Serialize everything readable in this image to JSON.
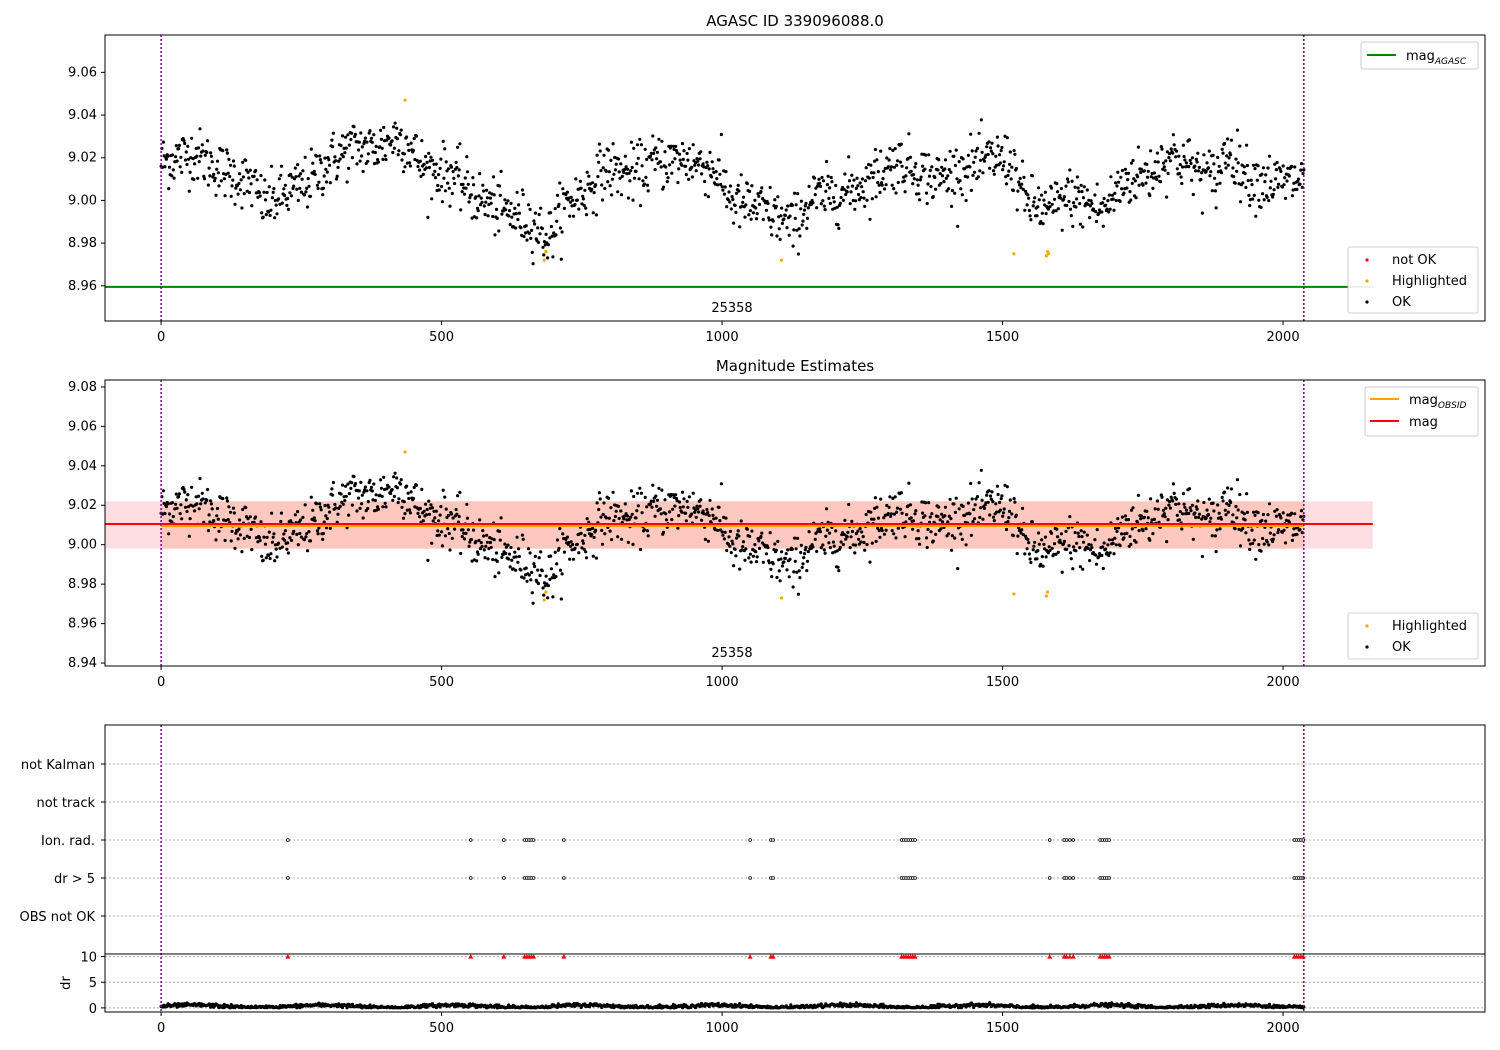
{
  "colors": {
    "mag_agasc": "#008000",
    "mag_obsid": "#ffa500",
    "mag": "#ff0000",
    "not_ok": "#ff0000",
    "highlighted": "#ffa500",
    "ok": "#000000",
    "obsid_boundary": "#800080",
    "band_outer": "#ffb6c1",
    "band_inner": "#ffd0b0"
  },
  "chart_data": [
    {
      "type": "scatter",
      "title": "AGASC ID 339096088.0",
      "xlim": [
        -100,
        2360
      ],
      "ylim": [
        8.9435,
        9.0775
      ],
      "xticks": [
        "0",
        "500",
        "1000",
        "1500",
        "2000"
      ],
      "yticks": [
        "8.96",
        "8.98",
        "9.00",
        "9.02",
        "9.04",
        "9.06"
      ],
      "obsid_label": "25358",
      "obsid_boundaries": [
        0,
        2037
      ],
      "hlines": [
        {
          "name": "mag",
          "sub": "AGASC",
          "y": 8.9595,
          "x_range": [
            -100,
            2160
          ]
        }
      ],
      "legend_lines": [
        {
          "name": "mag",
          "sub": "AGASC",
          "position": "upper right"
        }
      ],
      "legend_markers": [
        {
          "name": "not OK",
          "color": "#ff0000"
        },
        {
          "name": "Highlighted",
          "color": "#ffa500"
        },
        {
          "name": "OK",
          "color": "#000000"
        }
      ],
      "highlighted_points": [
        [
          435,
          9.047
        ],
        [
          683,
          8.972
        ],
        [
          686,
          8.976
        ],
        [
          1106,
          8.972
        ],
        [
          1520,
          8.975
        ],
        [
          1578,
          8.974
        ],
        [
          1580,
          8.976
        ],
        [
          1582,
          8.975
        ]
      ]
    },
    {
      "type": "scatter",
      "title": "Magnitude Estimates",
      "xlim": [
        -100,
        2360
      ],
      "ylim": [
        8.9385,
        9.0835
      ],
      "xticks": [
        "0",
        "500",
        "1000",
        "1500",
        "2000"
      ],
      "yticks": [
        "8.94",
        "8.96",
        "8.98",
        "9.00",
        "9.02",
        "9.04",
        "9.06",
        "9.08"
      ],
      "obsid_label": "25358",
      "obsid_boundaries": [
        0,
        2037
      ],
      "mag_obsid": 9.0095,
      "mag": 9.0105,
      "band": [
        8.998,
        9.022
      ],
      "band_x_range": [
        -100,
        2160
      ],
      "legend_lines": [
        {
          "name": "mag",
          "sub": "OBSID",
          "color": "#ffa500"
        },
        {
          "name": "mag",
          "sub": "",
          "color": "#ff0000"
        }
      ],
      "legend_markers": [
        {
          "name": "Highlighted",
          "color": "#ffa500"
        },
        {
          "name": "OK",
          "color": "#000000"
        }
      ],
      "highlighted_points": [
        [
          435,
          9.047
        ],
        [
          683,
          8.972
        ],
        [
          686,
          8.976
        ],
        [
          1106,
          8.973
        ],
        [
          1520,
          8.975
        ],
        [
          1578,
          8.974
        ],
        [
          1580,
          8.976
        ]
      ]
    },
    {
      "type": "scatter",
      "title": "",
      "xlim": [
        -100,
        2360
      ],
      "xticks": [
        "0",
        "500",
        "1000",
        "1500",
        "2000"
      ],
      "flag_categories": [
        "not Kalman",
        "not track",
        "Ion. rad.",
        "dr > 5",
        "OBS not OK"
      ],
      "flag_events_x": [
        226,
        552,
        611,
        648,
        652,
        656,
        660,
        664,
        718,
        1050,
        1087,
        1091,
        1320,
        1324,
        1328,
        1332,
        1336,
        1340,
        1344,
        1584,
        1610,
        1614,
        1620,
        1626,
        1674,
        1678,
        1682,
        1686,
        1690,
        2020,
        2024,
        2028,
        2032,
        2036
      ],
      "flag_rows": [
        "Ion. rad.",
        "dr > 5"
      ],
      "dr_ylabel": "dr",
      "dr_ylim": [
        -0.8,
        10.5
      ],
      "dr_yticks": [
        "0",
        "5",
        "10"
      ],
      "dr_clip_value": 10,
      "obsid_boundaries": [
        0,
        2037
      ]
    }
  ]
}
